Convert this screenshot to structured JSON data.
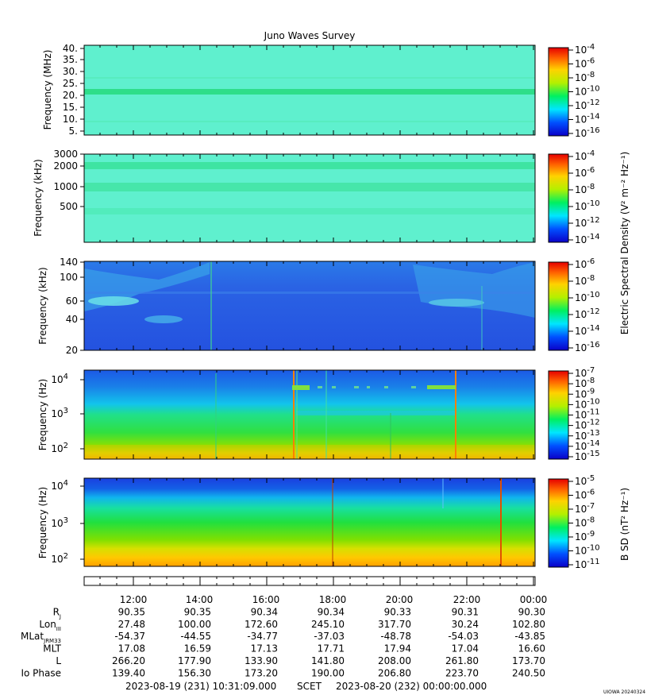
{
  "title": "Juno Waves Survey",
  "credit": "UIOWA 20240324",
  "colors": {
    "background": "#5ff0ce",
    "band": "#2ede8a",
    "panel3": "#2a68e6",
    "panel4_low": "#1890e8",
    "panel5_low": "#1c4ce0"
  },
  "chart_data": [
    {
      "type": "heatmap",
      "panel": 1,
      "ylabel": "Frequency (MHz)",
      "yticks": [
        "40.",
        "35.",
        "30.",
        "25.",
        "20.",
        "15.",
        "10.",
        "5."
      ],
      "colorbar": {
        "ticks": [
          {
            "base": "10",
            "exp": "-4"
          },
          {
            "base": "10",
            "exp": "-6"
          },
          {
            "base": "10",
            "exp": "-8"
          },
          {
            "base": "10",
            "exp": "-10"
          },
          {
            "base": "10",
            "exp": "-12"
          },
          {
            "base": "10",
            "exp": "-14"
          },
          {
            "base": "10",
            "exp": "-16"
          }
        ]
      }
    },
    {
      "type": "heatmap",
      "panel": 2,
      "ylabel": "Frequency (kHz)",
      "yticks": [
        "3000",
        "2000",
        "1000",
        "500"
      ],
      "colorbar": {
        "ticks": [
          {
            "base": "10",
            "exp": "-4"
          },
          {
            "base": "10",
            "exp": "-6"
          },
          {
            "base": "10",
            "exp": "-8"
          },
          {
            "base": "10",
            "exp": "-10"
          },
          {
            "base": "10",
            "exp": "-12"
          },
          {
            "base": "10",
            "exp": "-14"
          }
        ]
      }
    },
    {
      "type": "heatmap",
      "panel": 3,
      "ylabel": "Frequency (kHz)",
      "yticks": [
        "140",
        "100",
        "60",
        "40",
        "20"
      ],
      "colorbar": {
        "ticks": [
          {
            "base": "10",
            "exp": "-6"
          },
          {
            "base": "10",
            "exp": "-8"
          },
          {
            "base": "10",
            "exp": "-10"
          },
          {
            "base": "10",
            "exp": "-12"
          },
          {
            "base": "10",
            "exp": "-14"
          },
          {
            "base": "10",
            "exp": "-16"
          }
        ]
      }
    },
    {
      "type": "heatmap",
      "panel": 4,
      "ylabel": "Frequency (Hz)",
      "yticks": [
        {
          "base": "10",
          "exp": "4"
        },
        {
          "base": "10",
          "exp": "3"
        },
        {
          "base": "10",
          "exp": "2"
        }
      ],
      "colorbar": {
        "ticks": [
          {
            "base": "10",
            "exp": "-7"
          },
          {
            "base": "10",
            "exp": "-8"
          },
          {
            "base": "10",
            "exp": "-9"
          },
          {
            "base": "10",
            "exp": "-10"
          },
          {
            "base": "10",
            "exp": "-11"
          },
          {
            "base": "10",
            "exp": "-12"
          },
          {
            "base": "10",
            "exp": "-13"
          },
          {
            "base": "10",
            "exp": "-14"
          },
          {
            "base": "10",
            "exp": "-15"
          }
        ]
      }
    },
    {
      "type": "heatmap",
      "panel": 5,
      "ylabel": "Frequency (Hz)",
      "yticks": [
        {
          "base": "10",
          "exp": "4"
        },
        {
          "base": "10",
          "exp": "3"
        },
        {
          "base": "10",
          "exp": "2"
        }
      ],
      "colorbar": {
        "ticks": [
          {
            "base": "10",
            "exp": "-5"
          },
          {
            "base": "10",
            "exp": "-6"
          },
          {
            "base": "10",
            "exp": "-7"
          },
          {
            "base": "10",
            "exp": "-8"
          },
          {
            "base": "10",
            "exp": "-9"
          },
          {
            "base": "10",
            "exp": "-10"
          },
          {
            "base": "10",
            "exp": "-11"
          }
        ]
      }
    }
  ],
  "colorbar_labels": {
    "electric": "Electric Spectral Density (V² m⁻² Hz⁻¹)",
    "magnetic": "B SD (nT² Hz⁻¹)"
  },
  "ephemeris": {
    "time_ticks": [
      "12:00",
      "14:00",
      "16:00",
      "18:00",
      "20:00",
      "22:00",
      "00:00"
    ],
    "rows": [
      {
        "label": "R",
        "sub": "J",
        "values": [
          "90.35",
          "90.35",
          "90.34",
          "90.34",
          "90.33",
          "90.31",
          "90.30"
        ]
      },
      {
        "label": "Lon",
        "sub": "III",
        "values": [
          "27.48",
          "100.00",
          "172.60",
          "245.10",
          "317.70",
          "30.24",
          "102.80"
        ]
      },
      {
        "label": "MLat",
        "sub": "JRM33",
        "values": [
          "-54.37",
          "-44.55",
          "-34.77",
          "-37.03",
          "-48.78",
          "-54.03",
          "-43.85"
        ]
      },
      {
        "label": "MLT",
        "sub": "",
        "values": [
          "17.08",
          "16.59",
          "17.13",
          "17.71",
          "17.94",
          "17.04",
          "16.60"
        ]
      },
      {
        "label": "L",
        "sub": "",
        "values": [
          "266.20",
          "177.90",
          "133.90",
          "141.80",
          "208.00",
          "261.80",
          "173.70"
        ]
      },
      {
        "label": "Io Phase",
        "sub": "",
        "values": [
          "139.40",
          "156.30",
          "173.20",
          "190.00",
          "206.80",
          "223.70",
          "240.50"
        ]
      }
    ]
  },
  "time_range": {
    "start": "2023-08-19 (231) 10:31:09.000",
    "scet": "SCET",
    "end": "2023-08-20 (232) 00:00:00.000"
  }
}
